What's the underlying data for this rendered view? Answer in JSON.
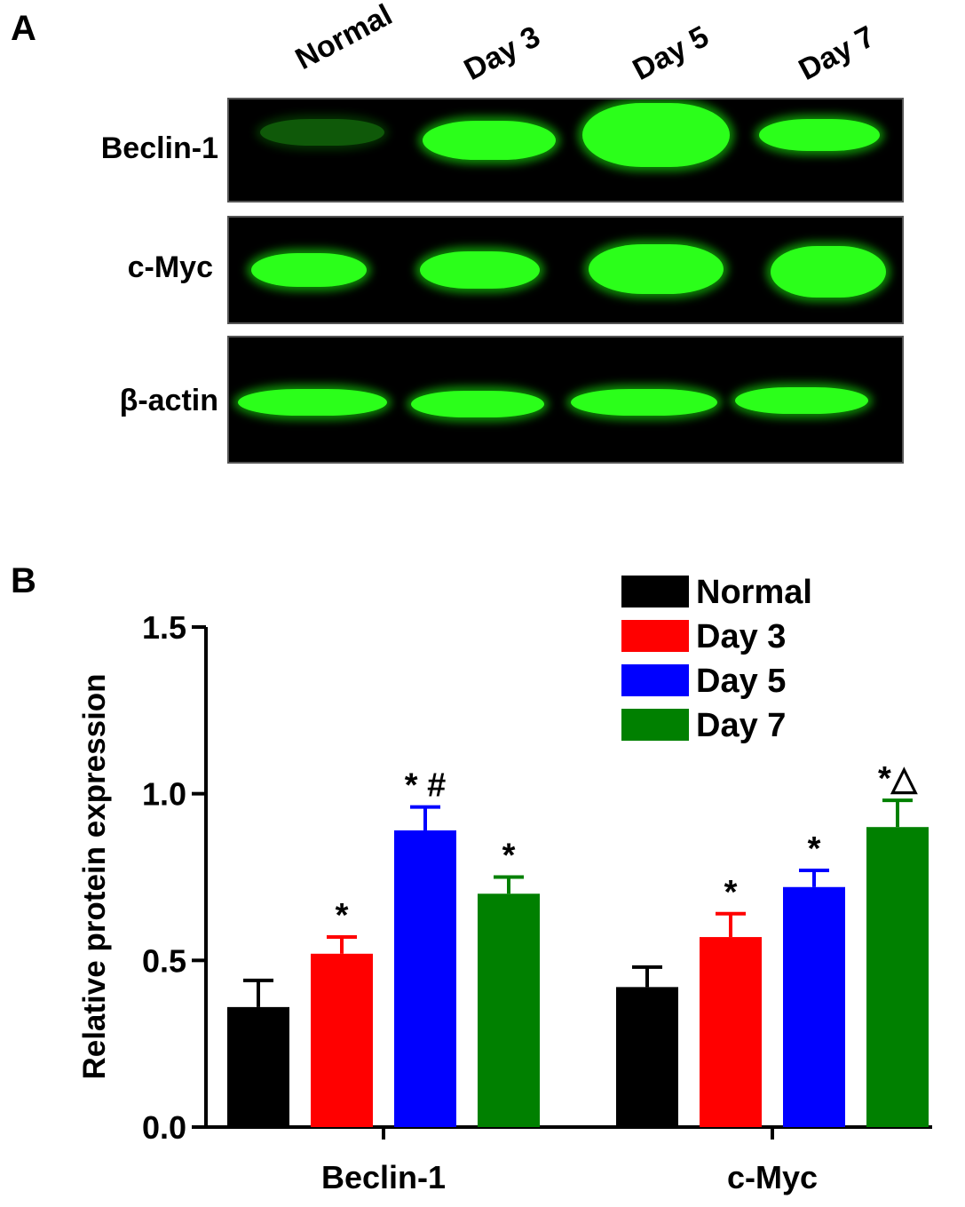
{
  "panel_a": {
    "letter": "A",
    "lanes": [
      "Normal",
      "Day 3",
      "Day 5",
      "Day 7"
    ],
    "rows": [
      {
        "label": "Beclin-1",
        "intensity": [
          0.35,
          0.85,
          1.0,
          0.75
        ]
      },
      {
        "label": "c-Myc",
        "intensity": [
          0.8,
          0.85,
          1.0,
          1.0
        ]
      },
      {
        "label": "β-actin",
        "intensity": [
          0.9,
          0.85,
          0.85,
          0.8
        ]
      }
    ],
    "band_color": "#2bff1a"
  },
  "panel_b": {
    "letter": "B"
  },
  "chart_data": {
    "type": "bar",
    "categories": [
      "Beclin-1",
      "c-Myc"
    ],
    "series": [
      {
        "name": "Normal",
        "color": "#000000",
        "values": [
          0.36,
          0.42
        ],
        "errors": [
          0.08,
          0.06
        ],
        "annotations": [
          "",
          ""
        ]
      },
      {
        "name": "Day 3",
        "color": "#ff0000",
        "values": [
          0.52,
          0.57
        ],
        "errors": [
          0.05,
          0.07
        ],
        "annotations": [
          "*",
          "*"
        ]
      },
      {
        "name": "Day 5",
        "color": "#0000ff",
        "values": [
          0.89,
          0.72
        ],
        "errors": [
          0.07,
          0.05
        ],
        "annotations": [
          "* #",
          "*"
        ]
      },
      {
        "name": "Day 7",
        "color": "#008000",
        "values": [
          0.7,
          0.9
        ],
        "errors": [
          0.05,
          0.08
        ],
        "annotations": [
          "*",
          "*△"
        ]
      }
    ],
    "ylabel": "Relative protein expression",
    "xlabel": "",
    "ylim": [
      0,
      1.5
    ],
    "yticks": [
      "0.0",
      "0.5",
      "1.0",
      "1.5"
    ],
    "grid": false,
    "legend_position": "top-right"
  }
}
